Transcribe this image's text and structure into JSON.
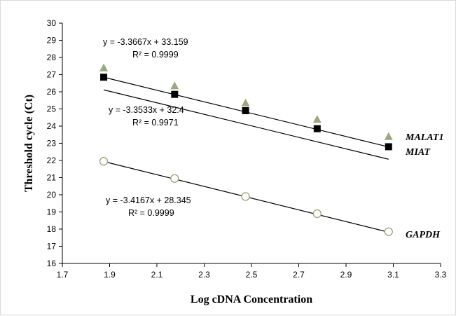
{
  "chart_data": {
    "type": "scatter",
    "xlabel": "Log cDNA Concentration",
    "ylabel": "Threshold cycle (Ct)",
    "xlim": [
      1.7,
      3.3
    ],
    "ylim": [
      16,
      30
    ],
    "x_ticks": [
      "1.7",
      "1.9",
      "2.1",
      "2.3",
      "2.5",
      "2.7",
      "2.9",
      "3.1",
      "3.3"
    ],
    "y_ticks": [
      "16",
      "17",
      "18",
      "19",
      "20",
      "21",
      "22",
      "23",
      "24",
      "25",
      "26",
      "27",
      "28",
      "29",
      "30"
    ],
    "grid": false,
    "series": [
      {
        "name": "MALAT1",
        "marker": "triangle",
        "color": "#9ba77f",
        "x": [
          1.875,
          2.175,
          2.475,
          2.778,
          3.08
        ],
        "y": [
          27.4,
          26.35,
          25.35,
          24.4,
          23.4
        ],
        "trendline": {
          "slope": -3.3667,
          "intercept": 33.159
        },
        "equation": "y = -3.3667x + 33.159",
        "r2": "R² = 0.9999"
      },
      {
        "name": "MIAT",
        "marker": "square",
        "color": "#000000",
        "x": [
          1.875,
          2.175,
          2.475,
          2.778,
          3.08
        ],
        "y": [
          26.85,
          25.85,
          24.9,
          23.85,
          22.8
        ],
        "trendline": {
          "slope": -3.3533,
          "intercept": 32.4
        },
        "equation": "y = -3.3533x + 32.4",
        "r2": "R² = 0.9971"
      },
      {
        "name": "GAPDH",
        "marker": "open-circle",
        "color": "#9ba77f",
        "x": [
          1.875,
          2.175,
          2.475,
          2.778,
          3.08
        ],
        "y": [
          21.95,
          20.95,
          19.9,
          18.9,
          17.85
        ],
        "trendline": {
          "slope": -3.4167,
          "intercept": 28.345
        },
        "equation": "y = -3.4167x + 28.345",
        "r2": "R² = 0.9999"
      }
    ]
  }
}
